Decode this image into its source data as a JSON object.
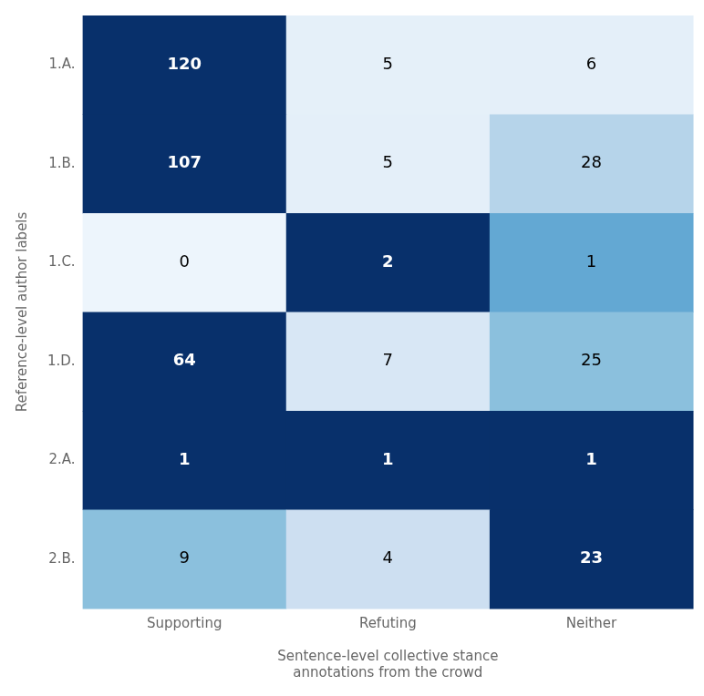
{
  "chart_data": {
    "type": "heatmap",
    "xlabel": "Sentence-level collective stance\nannotations from the crowd",
    "ylabel": "Reference-level author labels",
    "x_categories": [
      "Supporting",
      "Refuting",
      "Neither"
    ],
    "y_categories": [
      "1.A.",
      "1.B.",
      "1.C.",
      "1.D.",
      "2.A.",
      "2.B."
    ],
    "values": [
      [
        120,
        5,
        6
      ],
      [
        107,
        5,
        28
      ],
      [
        0,
        2,
        1
      ],
      [
        64,
        7,
        25
      ],
      [
        1,
        1,
        1
      ],
      [
        9,
        4,
        23
      ]
    ],
    "data_labels": true,
    "grid": false
  }
}
